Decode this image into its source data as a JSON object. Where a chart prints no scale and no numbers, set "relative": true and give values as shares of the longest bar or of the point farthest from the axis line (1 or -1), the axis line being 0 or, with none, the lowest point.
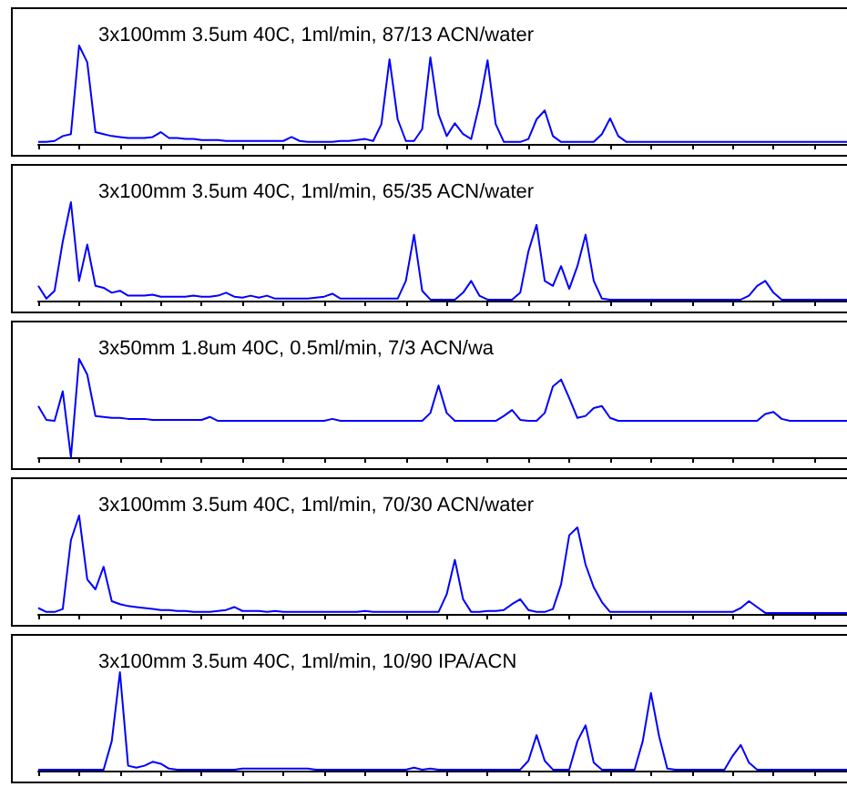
{
  "chart_data": [
    {
      "type": "line",
      "relative": true,
      "tick_labels": false,
      "title": "3x100mm 3.5um 40C, 1ml/min, 87/13 ACN/water",
      "categories": [
        null,
        null,
        null,
        null,
        null,
        null,
        null,
        null,
        null,
        null,
        null,
        null,
        null,
        null,
        null,
        null,
        null,
        null,
        null,
        null,
        null,
        null,
        null,
        null,
        null,
        null,
        null,
        null,
        null,
        null,
        null,
        null,
        null,
        null,
        null,
        null,
        null,
        null,
        null,
        null,
        null,
        null,
        null,
        null,
        null,
        null,
        null,
        null,
        null,
        null,
        null,
        null,
        null,
        null,
        null,
        null,
        null,
        null,
        null,
        null,
        null,
        null,
        null,
        null,
        null,
        null,
        null,
        null,
        null,
        null,
        null,
        null,
        null,
        null,
        null,
        null,
        null,
        null,
        null,
        null,
        null,
        null,
        null,
        null,
        null,
        null,
        null,
        null,
        null,
        null,
        null,
        null,
        null,
        null,
        null,
        null,
        null,
        null,
        null,
        null
      ],
      "series": [
        {
          "color": "#0000ff",
          "values": [
            0.02,
            0.02,
            0.03,
            0.08,
            0.1,
            1.0,
            0.83,
            0.12,
            0.1,
            0.08,
            0.07,
            0.06,
            0.06,
            0.06,
            0.07,
            0.12,
            0.06,
            0.06,
            0.05,
            0.05,
            0.04,
            0.04,
            0.04,
            0.03,
            0.03,
            0.03,
            0.03,
            0.03,
            0.03,
            0.03,
            0.03,
            0.07,
            0.03,
            0.02,
            0.02,
            0.02,
            0.02,
            0.03,
            0.03,
            0.04,
            0.05,
            0.03,
            0.2,
            0.86,
            0.25,
            0.03,
            0.03,
            0.15,
            0.88,
            0.3,
            0.08,
            0.21,
            0.1,
            0.05,
            0.4,
            0.85,
            0.2,
            0.02,
            0.02,
            0.02,
            0.05,
            0.25,
            0.34,
            0.08,
            0.02,
            0.02,
            0.02,
            0.02,
            0.02,
            0.1,
            0.26,
            0.08,
            0.02,
            0.02,
            0.02,
            0.02,
            0.02,
            0.02,
            0.02,
            0.02,
            0.02,
            0.02,
            0.02,
            0.02,
            0.02,
            0.02,
            0.02,
            0.02,
            0.02,
            0.02,
            0.02,
            0.02,
            0.02,
            0.02,
            0.02,
            0.02,
            0.02,
            0.02,
            0.02,
            0.02
          ]
        }
      ]
    },
    {
      "type": "line",
      "relative": true,
      "tick_labels": false,
      "title": "3x100mm 3.5um 40C, 1ml/min, 65/35 ACN/water",
      "categories": [
        null,
        null,
        null,
        null,
        null,
        null,
        null,
        null,
        null,
        null,
        null,
        null,
        null,
        null,
        null,
        null,
        null,
        null,
        null,
        null,
        null,
        null,
        null,
        null,
        null,
        null,
        null,
        null,
        null,
        null,
        null,
        null,
        null,
        null,
        null,
        null,
        null,
        null,
        null,
        null,
        null,
        null,
        null,
        null,
        null,
        null,
        null,
        null,
        null,
        null,
        null,
        null,
        null,
        null,
        null,
        null,
        null,
        null,
        null,
        null,
        null,
        null,
        null,
        null,
        null,
        null,
        null,
        null,
        null,
        null,
        null,
        null,
        null,
        null,
        null,
        null,
        null,
        null,
        null,
        null,
        null,
        null,
        null,
        null,
        null,
        null,
        null,
        null,
        null,
        null,
        null,
        null,
        null,
        null,
        null,
        null,
        null,
        null,
        null,
        null
      ],
      "series": [
        {
          "color": "#0000ff",
          "values": [
            0.15,
            0.02,
            0.1,
            0.6,
            1.0,
            0.2,
            0.57,
            0.15,
            0.13,
            0.08,
            0.1,
            0.05,
            0.05,
            0.05,
            0.06,
            0.04,
            0.04,
            0.04,
            0.04,
            0.05,
            0.04,
            0.04,
            0.05,
            0.08,
            0.04,
            0.03,
            0.05,
            0.03,
            0.05,
            0.02,
            0.02,
            0.02,
            0.02,
            0.02,
            0.03,
            0.04,
            0.07,
            0.02,
            0.02,
            0.02,
            0.02,
            0.02,
            0.02,
            0.02,
            0.02,
            0.2,
            0.67,
            0.1,
            0.01,
            0.01,
            0.01,
            0.01,
            0.08,
            0.2,
            0.05,
            0.01,
            0.01,
            0.01,
            0.01,
            0.08,
            0.5,
            0.77,
            0.2,
            0.15,
            0.35,
            0.12,
            0.35,
            0.67,
            0.2,
            0.02,
            0.01,
            0.01,
            0.01,
            0.01,
            0.01,
            0.01,
            0.01,
            0.01,
            0.01,
            0.01,
            0.01,
            0.01,
            0.01,
            0.01,
            0.01,
            0.01,
            0.01,
            0.05,
            0.15,
            0.2,
            0.08,
            0.01,
            0.01,
            0.01,
            0.01,
            0.01,
            0.01,
            0.01,
            0.01,
            0.01
          ]
        }
      ]
    },
    {
      "type": "line",
      "relative": true,
      "tick_labels": false,
      "title": "3x50mm 1.8um 40C, 0.5ml/min, 7/3 ACN/wa",
      "categories": [
        null,
        null,
        null,
        null,
        null,
        null,
        null,
        null,
        null,
        null,
        null,
        null,
        null,
        null,
        null,
        null,
        null,
        null,
        null,
        null,
        null,
        null,
        null,
        null,
        null,
        null,
        null,
        null,
        null,
        null,
        null,
        null,
        null,
        null,
        null,
        null,
        null,
        null,
        null,
        null,
        null,
        null,
        null,
        null,
        null,
        null,
        null,
        null,
        null,
        null,
        null,
        null,
        null,
        null,
        null,
        null,
        null,
        null,
        null,
        null,
        null,
        null,
        null,
        null,
        null,
        null,
        null,
        null,
        null,
        null,
        null,
        null,
        null,
        null,
        null,
        null,
        null,
        null,
        null,
        null,
        null,
        null,
        null,
        null,
        null,
        null,
        null,
        null,
        null,
        null,
        null,
        null,
        null,
        null,
        null,
        null,
        null,
        null,
        null,
        null
      ],
      "series": [
        {
          "color": "#0000ff",
          "values": [
            0.52,
            0.38,
            0.37,
            0.67,
            0,
            1.0,
            0.84,
            0.42,
            0.41,
            0.4,
            0.4,
            0.39,
            0.39,
            0.39,
            0.38,
            0.38,
            0.38,
            0.38,
            0.38,
            0.38,
            0.38,
            0.41,
            0.37,
            0.37,
            0.37,
            0.37,
            0.37,
            0.37,
            0.37,
            0.37,
            0.37,
            0.37,
            0.37,
            0.37,
            0.37,
            0.37,
            0.39,
            0.37,
            0.37,
            0.37,
            0.37,
            0.37,
            0.37,
            0.37,
            0.37,
            0.37,
            0.37,
            0.37,
            0.45,
            0.73,
            0.45,
            0.37,
            0.37,
            0.37,
            0.37,
            0.37,
            0.37,
            0.42,
            0.48,
            0.38,
            0.37,
            0.37,
            0.45,
            0.72,
            0.79,
            0.6,
            0.4,
            0.42,
            0.5,
            0.52,
            0.4,
            0.37,
            0.37,
            0.37,
            0.37,
            0.37,
            0.37,
            0.37,
            0.37,
            0.37,
            0.37,
            0.37,
            0.37,
            0.37,
            0.37,
            0.37,
            0.37,
            0.37,
            0.37,
            0.44,
            0.46,
            0.39,
            0.37,
            0.37,
            0.37,
            0.37,
            0.37,
            0.37,
            0.37,
            0.37
          ]
        }
      ]
    },
    {
      "type": "line",
      "relative": true,
      "tick_labels": false,
      "title": "3x100mm 3.5um 40C, 1ml/min, 70/30 ACN/water",
      "categories": [
        null,
        null,
        null,
        null,
        null,
        null,
        null,
        null,
        null,
        null,
        null,
        null,
        null,
        null,
        null,
        null,
        null,
        null,
        null,
        null,
        null,
        null,
        null,
        null,
        null,
        null,
        null,
        null,
        null,
        null,
        null,
        null,
        null,
        null,
        null,
        null,
        null,
        null,
        null,
        null,
        null,
        null,
        null,
        null,
        null,
        null,
        null,
        null,
        null,
        null,
        null,
        null,
        null,
        null,
        null,
        null,
        null,
        null,
        null,
        null,
        null,
        null,
        null,
        null,
        null,
        null,
        null,
        null,
        null,
        null,
        null,
        null,
        null,
        null,
        null,
        null,
        null,
        null,
        null,
        null,
        null,
        null,
        null,
        null,
        null,
        null,
        null,
        null,
        null,
        null,
        null,
        null,
        null,
        null,
        null,
        null,
        null,
        null,
        null,
        null
      ],
      "series": [
        {
          "color": "#0000ff",
          "values": [
            0.06,
            0.02,
            0.02,
            0.05,
            0.75,
            1.0,
            0.35,
            0.25,
            0.48,
            0.13,
            0.1,
            0.08,
            0.07,
            0.06,
            0.05,
            0.04,
            0.04,
            0.03,
            0.03,
            0.02,
            0.02,
            0.02,
            0.03,
            0.04,
            0.07,
            0.03,
            0.03,
            0.03,
            0.02,
            0.03,
            0.02,
            0.02,
            0.02,
            0.02,
            0.02,
            0.02,
            0.02,
            0.02,
            0.02,
            0.02,
            0.03,
            0.02,
            0.02,
            0.02,
            0.02,
            0.02,
            0.02,
            0.02,
            0.02,
            0.02,
            0.2,
            0.55,
            0.15,
            0.02,
            0.02,
            0.03,
            0.03,
            0.04,
            0.1,
            0.15,
            0.04,
            0.02,
            0.02,
            0.05,
            0.3,
            0.8,
            0.88,
            0.5,
            0.27,
            0.12,
            0.02,
            0.02,
            0.02,
            0.02,
            0.02,
            0.02,
            0.02,
            0.02,
            0.02,
            0.02,
            0.02,
            0.02,
            0.02,
            0.02,
            0.02,
            0.02,
            0.06,
            0.13,
            0.07,
            0.01,
            0.01,
            0.01,
            0.01,
            0.01,
            0.01,
            0.01,
            0.01,
            0.01,
            0.01,
            0.01
          ]
        }
      ]
    },
    {
      "type": "line",
      "relative": true,
      "tick_labels": false,
      "title": "3x100mm 3.5um 40C, 1ml/min, 10/90 IPA/ACN",
      "categories": [
        null,
        null,
        null,
        null,
        null,
        null,
        null,
        null,
        null,
        null,
        null,
        null,
        null,
        null,
        null,
        null,
        null,
        null,
        null,
        null,
        null,
        null,
        null,
        null,
        null,
        null,
        null,
        null,
        null,
        null,
        null,
        null,
        null,
        null,
        null,
        null,
        null,
        null,
        null,
        null,
        null,
        null,
        null,
        null,
        null,
        null,
        null,
        null,
        null,
        null,
        null,
        null,
        null,
        null,
        null,
        null,
        null,
        null,
        null,
        null,
        null,
        null,
        null,
        null,
        null,
        null,
        null,
        null,
        null,
        null,
        null,
        null,
        null,
        null,
        null,
        null,
        null,
        null,
        null,
        null,
        null,
        null,
        null,
        null,
        null,
        null,
        null,
        null,
        null,
        null,
        null,
        null,
        null,
        null,
        null,
        null,
        null,
        null,
        null,
        null
      ],
      "series": [
        {
          "color": "#0000ff",
          "values": [
            0.01,
            0.01,
            0.01,
            0.01,
            0.01,
            0.01,
            0.01,
            0.01,
            0.01,
            0.3,
            1.0,
            0.05,
            0.03,
            0.05,
            0.09,
            0.07,
            0.02,
            0.01,
            0.01,
            0.01,
            0.01,
            0.01,
            0.01,
            0.01,
            0.01,
            0.02,
            0.02,
            0.02,
            0.02,
            0.02,
            0.02,
            0.02,
            0.02,
            0.02,
            0.01,
            0.01,
            0.01,
            0.01,
            0.01,
            0.01,
            0.01,
            0.01,
            0.01,
            0.01,
            0.01,
            0.01,
            0.03,
            0.01,
            0.02,
            0.01,
            0.01,
            0.01,
            0.01,
            0.01,
            0.01,
            0.01,
            0.01,
            0.01,
            0.01,
            0.01,
            0.1,
            0.36,
            0.1,
            0.01,
            0.01,
            0.01,
            0.3,
            0.46,
            0.08,
            0.01,
            0.01,
            0.01,
            0.01,
            0.01,
            0.3,
            0.79,
            0.35,
            0.02,
            0.01,
            0.01,
            0.01,
            0.01,
            0.01,
            0.01,
            0.01,
            0.15,
            0.26,
            0.08,
            0.01,
            0.01,
            0.01,
            0.01,
            0.01,
            0.01,
            0.01,
            0.01,
            0.01,
            0.01,
            0.01,
            0.01
          ]
        }
      ]
    }
  ]
}
